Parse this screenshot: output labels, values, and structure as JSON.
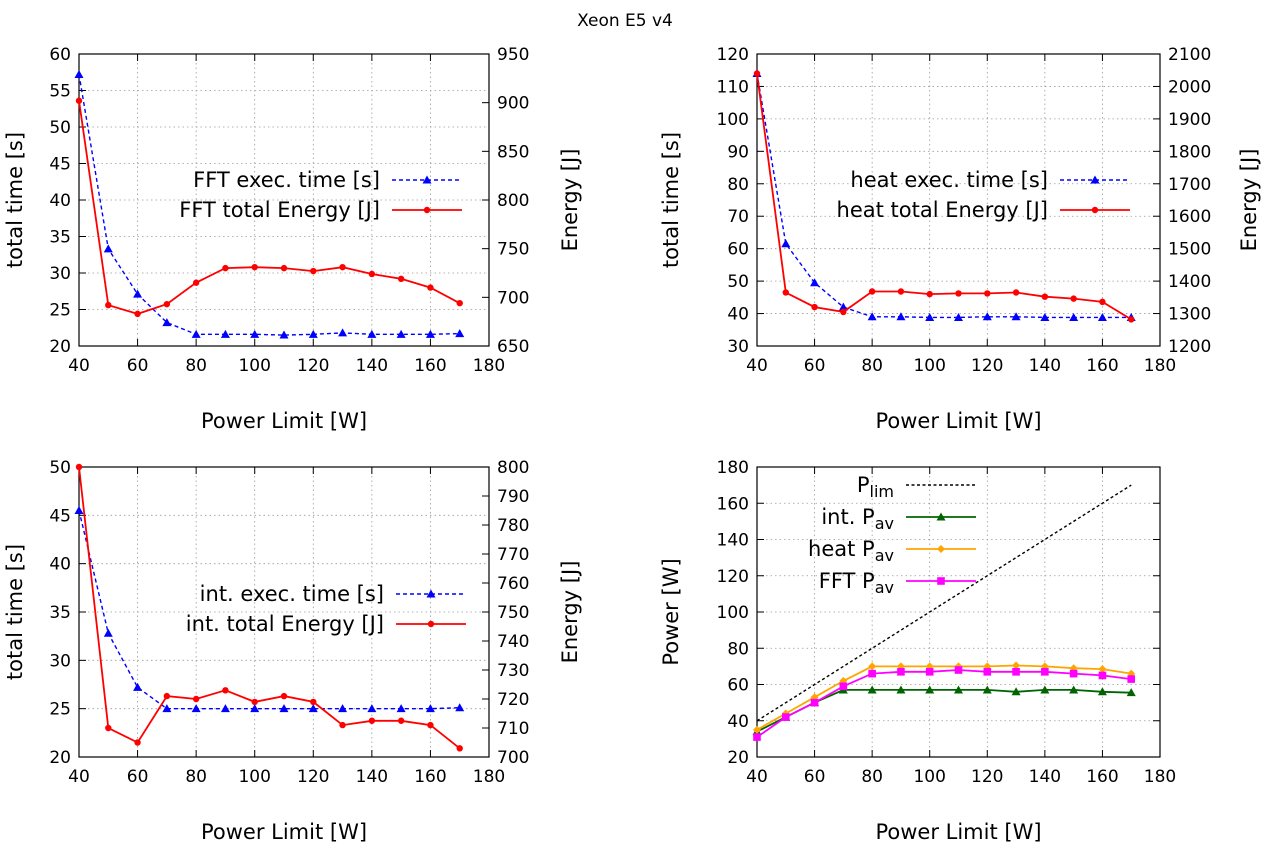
{
  "figure": {
    "title": "Xeon E5 v4"
  },
  "chart_data": [
    {
      "type": "line",
      "xlabel": "Power Limit [W]",
      "ylabel": "total time [s]",
      "y2label": "Energy [J]",
      "xlim": [
        40,
        180
      ],
      "ylim": [
        20,
        60
      ],
      "y2lim": [
        650,
        950
      ],
      "xticks": [
        40,
        60,
        80,
        100,
        120,
        140,
        160,
        180
      ],
      "yticks": [
        20,
        25,
        30,
        35,
        40,
        45,
        50,
        55,
        60
      ],
      "y2ticks": [
        650,
        700,
        750,
        800,
        850,
        900,
        950
      ],
      "grid": true,
      "legend": "center-right",
      "x": [
        40,
        50,
        60,
        70,
        80,
        90,
        100,
        110,
        120,
        130,
        140,
        150,
        160,
        170
      ],
      "series": [
        {
          "name": "FFT exec. time [s]",
          "axis": "left",
          "color": "#0000ff",
          "dash": true,
          "marker": "triangle",
          "values": [
            57.2,
            33.3,
            27.1,
            23.2,
            21.6,
            21.6,
            21.6,
            21.5,
            21.6,
            21.8,
            21.6,
            21.6,
            21.6,
            21.7
          ]
        },
        {
          "name": "FFT total Energy [J]",
          "axis": "right",
          "color": "#ff0000",
          "dash": false,
          "marker": "circle",
          "values": [
            902,
            692,
            683,
            693,
            715,
            730,
            731,
            730,
            727,
            731,
            724,
            719,
            710,
            694
          ]
        }
      ]
    },
    {
      "type": "line",
      "xlabel": "Power Limit [W]",
      "ylabel": "total time [s]",
      "y2label": "Energy [J]",
      "xlim": [
        40,
        180
      ],
      "ylim": [
        30,
        120
      ],
      "y2lim": [
        1200,
        2100
      ],
      "xticks": [
        40,
        60,
        80,
        100,
        120,
        140,
        160,
        180
      ],
      "yticks": [
        30,
        40,
        50,
        60,
        70,
        80,
        90,
        100,
        110,
        120
      ],
      "y2ticks": [
        1200,
        1300,
        1400,
        1500,
        1600,
        1700,
        1800,
        1900,
        2000,
        2100
      ],
      "grid": true,
      "legend": "center-right",
      "x": [
        40,
        50,
        60,
        70,
        80,
        90,
        100,
        110,
        120,
        130,
        140,
        150,
        160,
        170
      ],
      "series": [
        {
          "name": "heat exec. time [s]",
          "axis": "left",
          "color": "#0000ff",
          "dash": true,
          "marker": "triangle",
          "values": [
            114,
            61.5,
            49.5,
            42,
            39,
            39,
            38.8,
            38.8,
            39,
            39,
            38.8,
            38.8,
            38.8,
            38.8
          ]
        },
        {
          "name": "heat total Energy [J]",
          "axis": "right",
          "color": "#ff0000",
          "dash": false,
          "marker": "circle",
          "values": [
            2040,
            1365,
            1320,
            1305,
            1368,
            1368,
            1360,
            1362,
            1362,
            1365,
            1352,
            1346,
            1336,
            1282
          ]
        }
      ]
    },
    {
      "type": "line",
      "xlabel": "Power Limit [W]",
      "ylabel": "total time [s]",
      "y2label": "Energy [J]",
      "xlim": [
        40,
        180
      ],
      "ylim": [
        20,
        50
      ],
      "y2lim": [
        700,
        800
      ],
      "xticks": [
        40,
        60,
        80,
        100,
        120,
        140,
        160,
        180
      ],
      "yticks": [
        20,
        25,
        30,
        35,
        40,
        45,
        50
      ],
      "y2ticks": [
        700,
        710,
        720,
        730,
        740,
        750,
        760,
        770,
        780,
        790,
        800
      ],
      "grid": true,
      "legend": "center-right",
      "x": [
        40,
        50,
        60,
        70,
        80,
        90,
        100,
        110,
        120,
        130,
        140,
        150,
        160,
        170
      ],
      "series": [
        {
          "name": "int. exec. time [s]",
          "axis": "left",
          "color": "#0000ff",
          "dash": true,
          "marker": "triangle",
          "values": [
            45.5,
            32.8,
            27.2,
            25,
            25,
            25,
            25,
            25,
            25,
            25,
            25,
            25,
            25,
            25.1
          ]
        },
        {
          "name": "int. total Energy [J]",
          "axis": "right",
          "color": "#ff0000",
          "dash": false,
          "marker": "circle",
          "values": [
            800,
            710,
            705,
            721,
            720,
            723,
            719,
            721,
            719,
            711,
            712.5,
            712.5,
            711,
            703
          ]
        }
      ]
    },
    {
      "type": "line",
      "xlabel": "Power Limit [W]",
      "ylabel": "Power [W]",
      "xlim": [
        40,
        180
      ],
      "ylim": [
        20,
        180
      ],
      "xticks": [
        40,
        60,
        80,
        100,
        120,
        140,
        160,
        180
      ],
      "yticks": [
        20,
        40,
        60,
        80,
        100,
        120,
        140,
        160,
        180
      ],
      "grid": true,
      "legend": "top-left",
      "x": [
        40,
        50,
        60,
        70,
        80,
        90,
        100,
        110,
        120,
        130,
        140,
        150,
        160,
        170
      ],
      "series": [
        {
          "name": "P",
          "sub": "lim",
          "axis": "left",
          "color": "#000000",
          "dash": true,
          "marker": "none",
          "x": [
            40,
            170
          ],
          "values": [
            40,
            170
          ]
        },
        {
          "name": "int. P",
          "sub": "av",
          "axis": "left",
          "color": "#006400",
          "dash": false,
          "marker": "triangle",
          "values": [
            34,
            42,
            50,
            57,
            57,
            57,
            57,
            57,
            57,
            56,
            57,
            57,
            56,
            55.5
          ]
        },
        {
          "name": "heat P",
          "sub": "av",
          "axis": "left",
          "color": "#ffa500",
          "dash": false,
          "marker": "diamond",
          "values": [
            35,
            44,
            53,
            62,
            70,
            70,
            70,
            70,
            70,
            70.5,
            70,
            69,
            68.5,
            66
          ]
        },
        {
          "name": "FFT P",
          "sub": "av",
          "axis": "left",
          "color": "#ff00ff",
          "dash": false,
          "marker": "square",
          "values": [
            31,
            42,
            50,
            59,
            66,
            67,
            67,
            68,
            67,
            67,
            67,
            66,
            65,
            63
          ]
        }
      ]
    }
  ]
}
